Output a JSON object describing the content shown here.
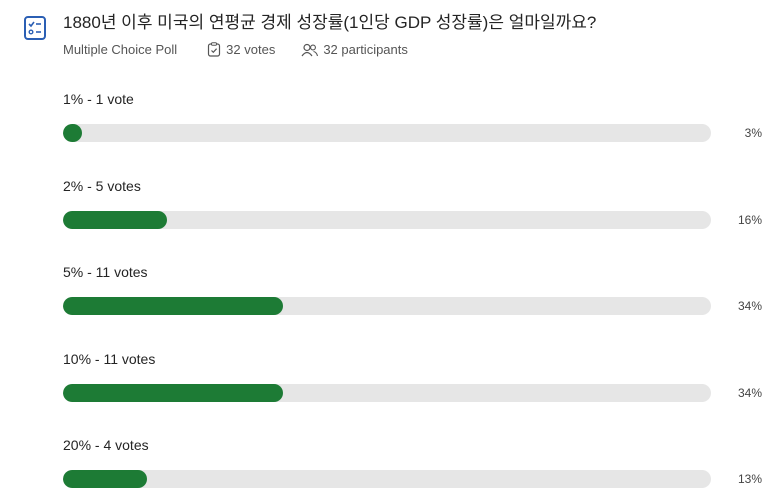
{
  "poll": {
    "title": "1880년 이후 미국의 연평균 경제 성장률(1인당 GDP 성장률)은 얼마일까요?",
    "type": "Multiple Choice Poll",
    "votes": "32 votes",
    "participants": "32 participants",
    "options": [
      {
        "label": "1% - 1 vote",
        "percent": 3,
        "percent_label": "3%"
      },
      {
        "label": "2% - 5 votes",
        "percent": 16,
        "percent_label": "16%"
      },
      {
        "label": "5% - 11 votes",
        "percent": 34,
        "percent_label": "34%"
      },
      {
        "label": "10% - 11 votes",
        "percent": 34,
        "percent_label": "34%"
      },
      {
        "label": "20% - 4 votes",
        "percent": 13,
        "percent_label": "13%"
      }
    ]
  }
}
